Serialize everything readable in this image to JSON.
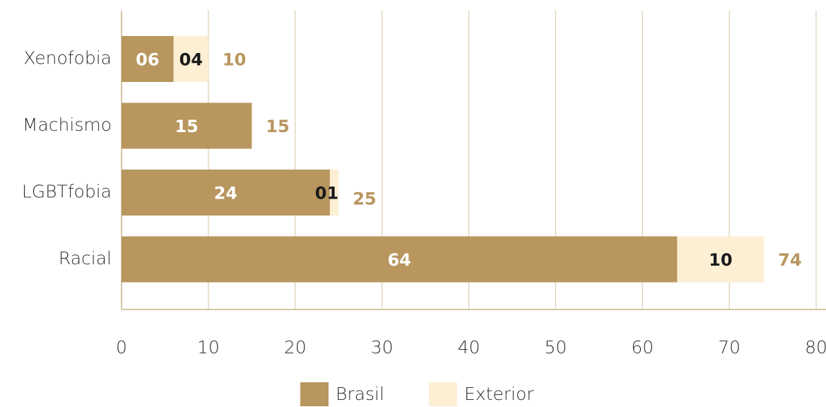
{
  "chart_data": {
    "type": "stacked_barh",
    "categories": [
      "Xenofobia",
      "Machismo",
      "LGBTfobia",
      "Racial"
    ],
    "series": [
      {
        "name": "Brasil",
        "color": "#b8965e",
        "values": [
          6,
          15,
          24,
          64
        ],
        "value_labels": [
          "06",
          "15",
          "24",
          "64"
        ]
      },
      {
        "name": "Exterior",
        "color": "#fcefd4",
        "values": [
          4,
          null,
          1,
          10
        ],
        "value_labels": [
          "04",
          null,
          "01",
          "10"
        ]
      }
    ],
    "totals": [
      10,
      15,
      25,
      74
    ],
    "xlim": [
      0,
      80
    ],
    "xticks": [
      0,
      10,
      20,
      30,
      40,
      50,
      60,
      70,
      80
    ],
    "grid": true
  }
}
